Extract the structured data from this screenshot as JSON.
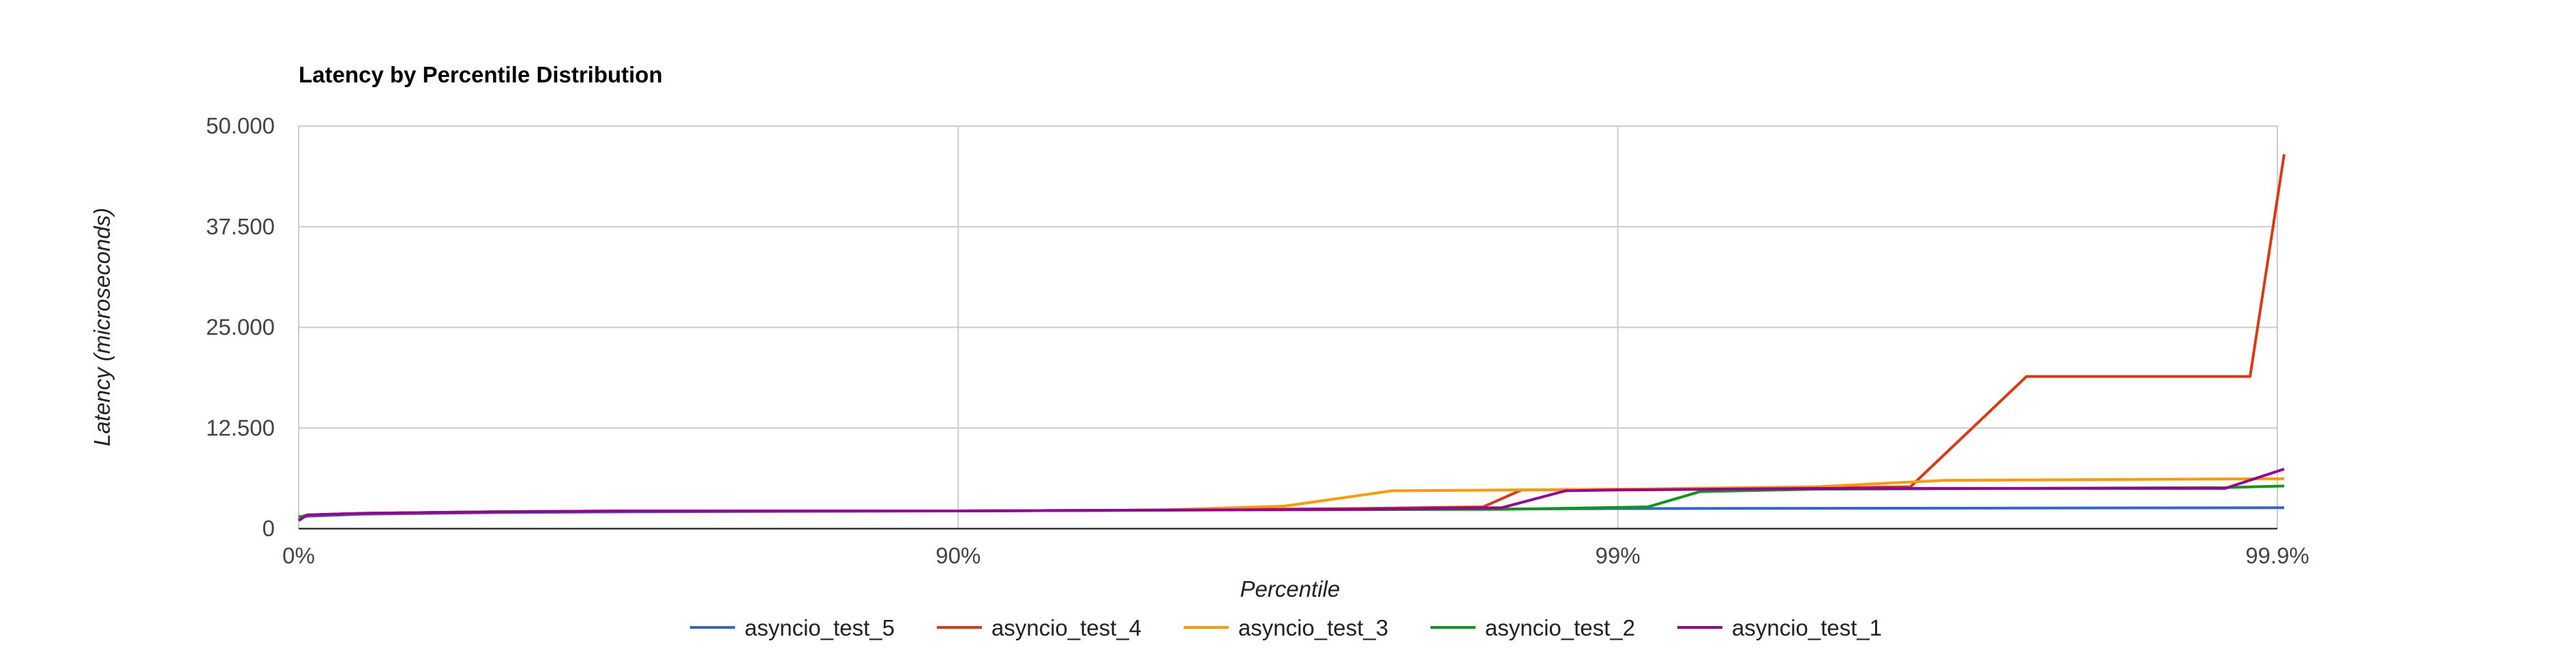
{
  "chart_data": {
    "type": "line",
    "title": "Latency by Percentile Distribution",
    "xlabel": "Percentile",
    "ylabel": "Latency (microseconds)",
    "ylim": [
      0,
      50000
    ],
    "y_ticks": [
      0,
      12500,
      25000,
      37500,
      50000
    ],
    "y_tick_labels": [
      "0",
      "12.500",
      "25.000",
      "37.500",
      "50.000"
    ],
    "x_scale": "log-percentile (1/(1-p))",
    "x_ticks": [
      0,
      90,
      99,
      99.9
    ],
    "x_tick_labels": [
      "0%",
      "90%",
      "99%",
      "99.9%"
    ],
    "grid": true,
    "legend_position": "bottom",
    "series": [
      {
        "name": "asyncio_test_5",
        "color": "#3366cc",
        "x": [
          0,
          20,
          50,
          70,
          90,
          95,
          98,
          99,
          99.9
        ],
        "y": [
          1500,
          1800,
          2000,
          2100,
          2200,
          2300,
          2400,
          2500,
          2600
        ]
      },
      {
        "name": "asyncio_test_4",
        "color": "#dc3912",
        "x": [
          0,
          3,
          20,
          50,
          70,
          90,
          95,
          97.5,
          98.4,
          98.6,
          99,
          99.3,
          99.55,
          99.64,
          99.76,
          99.89,
          99.9
        ],
        "y": [
          1400,
          1700,
          1900,
          2100,
          2200,
          2200,
          2300,
          2500,
          2700,
          4800,
          4900,
          4900,
          5100,
          5200,
          18900,
          18900,
          46500
        ]
      },
      {
        "name": "asyncio_test_3",
        "color": "#ff9900",
        "x": [
          0,
          3,
          20,
          50,
          70,
          90,
          95,
          96.8,
          97.8,
          98.5,
          99,
          99.5,
          99.68,
          99.9
        ],
        "y": [
          1400,
          1700,
          1900,
          2100,
          2200,
          2200,
          2300,
          2800,
          4700,
          4800,
          4900,
          5200,
          6000,
          6200
        ]
      },
      {
        "name": "asyncio_test_2",
        "color": "#109618",
        "x": [
          0,
          3,
          20,
          50,
          70,
          90,
          95,
          98.5,
          99.1,
          99.25,
          99.5,
          99.88,
          99.9
        ],
        "y": [
          1400,
          1700,
          1900,
          2100,
          2200,
          2200,
          2300,
          2400,
          2700,
          4600,
          4900,
          5100,
          5300
        ]
      },
      {
        "name": "asyncio_test_1",
        "color": "#990099",
        "x": [
          0,
          3,
          20,
          50,
          70,
          90,
          95,
          97.5,
          98.5,
          98.8,
          99,
          99.5,
          99.88,
          99.9
        ],
        "y": [
          1000,
          1700,
          1900,
          2100,
          2200,
          2200,
          2300,
          2400,
          2600,
          4700,
          4800,
          5000,
          5000,
          7400
        ]
      }
    ]
  }
}
